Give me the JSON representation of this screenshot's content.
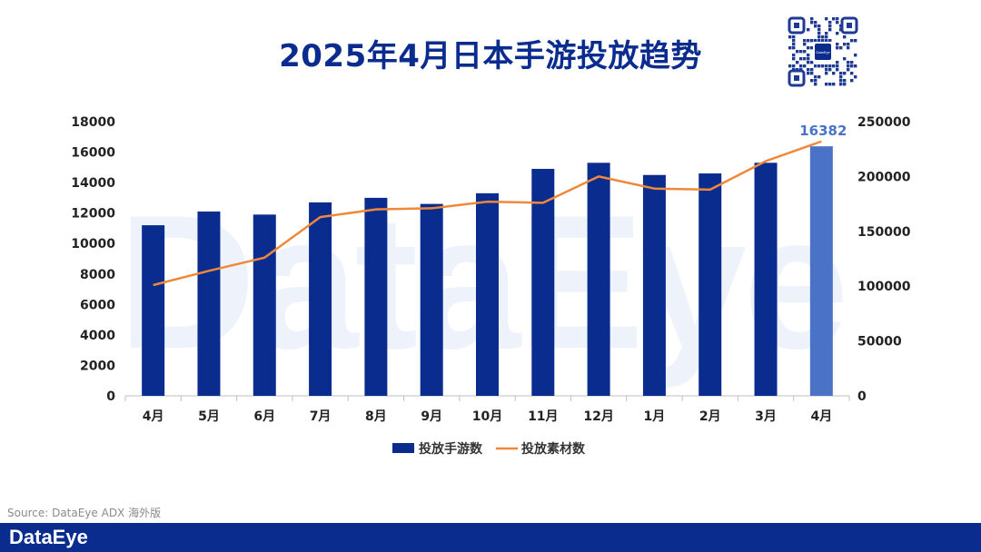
{
  "header": {
    "title": "2025年4月日本手游投放趋势"
  },
  "watermark": {
    "text": "DataEye"
  },
  "qr": {
    "center_label": "DataEye"
  },
  "chart_data": {
    "type": "bar",
    "title": "2025年4月日本手游投放趋势",
    "categories": [
      "4月",
      "5月",
      "6月",
      "7月",
      "8月",
      "9月",
      "10月",
      "11月",
      "12月",
      "1月",
      "2月",
      "3月",
      "4月"
    ],
    "series": [
      {
        "name": "投放手游数",
        "type": "bar",
        "axis": "left",
        "color": "#0b2c8f",
        "highlight_last_color": "#4a73c8",
        "values": [
          11200,
          12100,
          11900,
          12700,
          13000,
          12600,
          13300,
          14900,
          15300,
          14500,
          14600,
          15300,
          16382
        ]
      },
      {
        "name": "投放素材数",
        "type": "line",
        "axis": "right",
        "color": "#f0883a",
        "values": [
          101000,
          114000,
          126000,
          163000,
          170000,
          171000,
          177000,
          176000,
          200000,
          189000,
          188000,
          214000,
          232000
        ]
      }
    ],
    "left_axis": {
      "min": 0,
      "max": 18000,
      "step": 2000,
      "ticks": [
        "0",
        "2000",
        "4000",
        "6000",
        "8000",
        "10000",
        "12000",
        "14000",
        "16000",
        "18000"
      ]
    },
    "right_axis": {
      "min": 0,
      "max": 250000,
      "step": 50000,
      "ticks": [
        "0",
        "50000",
        "100000",
        "150000",
        "200000",
        "250000"
      ]
    },
    "annotation": {
      "text": "16382",
      "category_index": 12,
      "color": "#4a73c8"
    },
    "legend": {
      "position": "bottom"
    },
    "grid": false
  },
  "footer": {
    "source": "Source: DataEye ADX 海外版",
    "brand": "DataEye",
    "bar_color": "#0b2c8f"
  }
}
